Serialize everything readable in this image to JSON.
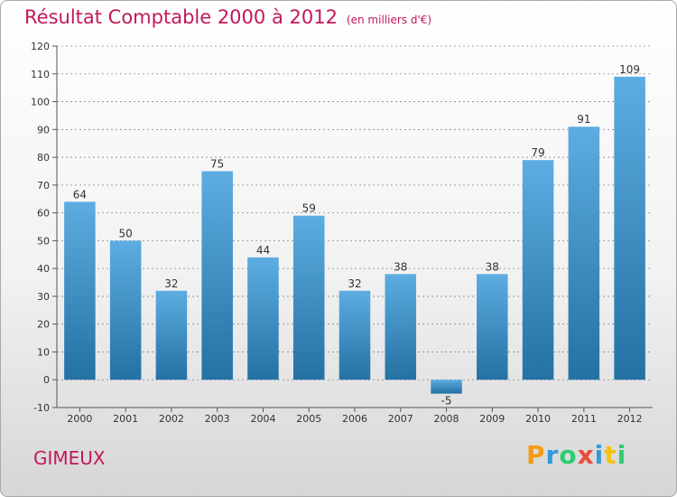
{
  "title": "Résultat Comptable 2000 à 2012",
  "unit": "(en milliers d'€)",
  "commune": "GIMEUX",
  "logo": {
    "letters": [
      "P",
      "r",
      "o",
      "x",
      "i",
      "t",
      "i"
    ],
    "colors": [
      "#f39c12",
      "#3498db",
      "#2ecc71",
      "#e74c3c",
      "#3498db",
      "#f1c40f",
      "#2ecc71"
    ]
  },
  "colors": {
    "title": "#c2185b",
    "bar_top": "#5dade2",
    "bar_bottom": "#2471a3",
    "axis": "#555555",
    "grid": "#888888"
  },
  "chart_data": {
    "type": "bar",
    "title": "Résultat Comptable 2000 à 2012",
    "ylabel": "en milliers d'€",
    "xlabel": "",
    "categories": [
      "2000",
      "2001",
      "2002",
      "2003",
      "2004",
      "2005",
      "2006",
      "2007",
      "2008",
      "2009",
      "2010",
      "2011",
      "2012"
    ],
    "values": [
      64,
      50,
      32,
      75,
      44,
      59,
      32,
      38,
      -5,
      38,
      79,
      91,
      109
    ],
    "ylim": [
      -10,
      120
    ],
    "yticks": [
      -10,
      0,
      10,
      20,
      30,
      40,
      50,
      60,
      70,
      80,
      90,
      100,
      110,
      120
    ],
    "grid": true
  }
}
